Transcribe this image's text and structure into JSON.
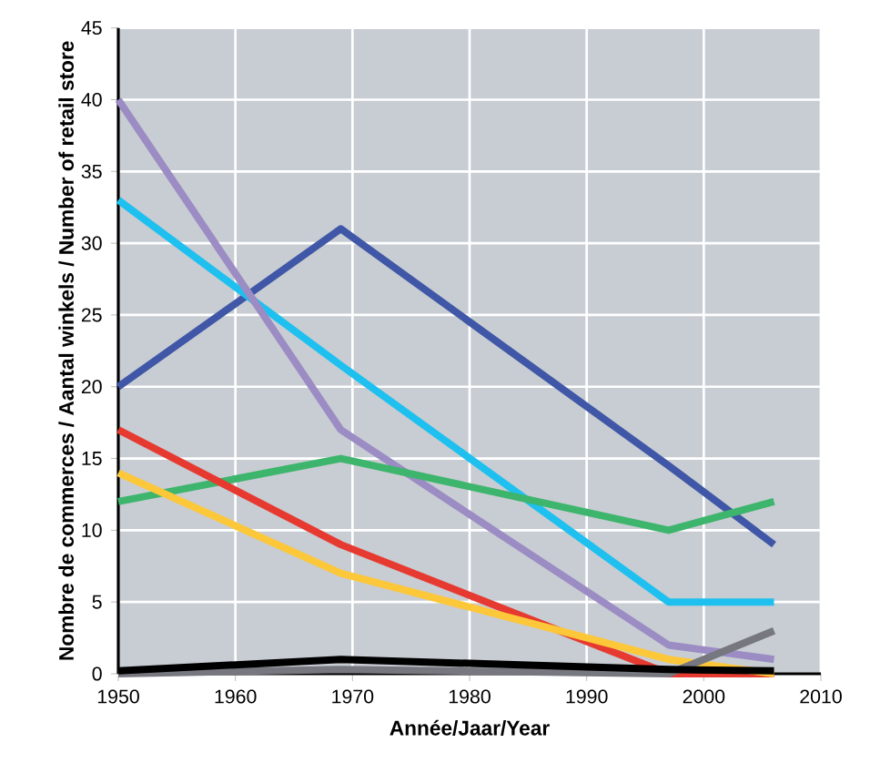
{
  "chart_data": {
    "type": "line",
    "xlabel": "Année/Jaar/Year",
    "ylabel": "Nombre de commerces / Aantal winkels / Number of retail store",
    "x": [
      1950,
      1969,
      1997,
      2006
    ],
    "series": [
      {
        "color": "#3f57a6",
        "values": [
          20,
          31,
          14.5,
          9
        ]
      },
      {
        "color": "#1ec0ef",
        "values": [
          33,
          21.5,
          5,
          5
        ]
      },
      {
        "color": "#9b8cc4",
        "values": [
          40,
          17,
          2,
          1
        ]
      },
      {
        "color": "#3db56c",
        "values": [
          12,
          15,
          10,
          12
        ]
      },
      {
        "color": "#e63a30",
        "values": [
          17,
          9,
          0,
          0
        ]
      },
      {
        "color": "#fdc73a",
        "values": [
          14,
          7,
          1,
          0
        ]
      },
      {
        "color": "#77777f",
        "values": [
          0,
          0.3,
          0,
          3
        ]
      },
      {
        "color": "#000000",
        "values": [
          0.2,
          1,
          0.3,
          0.2
        ]
      }
    ],
    "xlim": [
      1950,
      2010
    ],
    "xticks": [
      1950,
      1960,
      1970,
      1980,
      1990,
      2000,
      2010
    ],
    "ylim": [
      0,
      45
    ],
    "yticks": [
      0,
      5,
      10,
      15,
      20,
      25,
      30,
      35,
      40,
      45
    ],
    "grid": true,
    "marker": "none",
    "line_style": "solid"
  }
}
